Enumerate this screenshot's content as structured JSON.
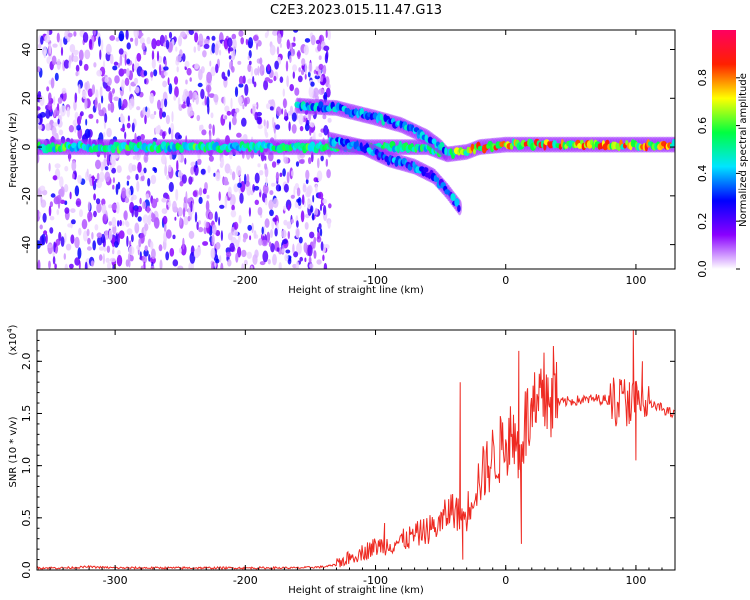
{
  "title": "C2E3.2023.015.11.47.G13",
  "chart_data": [
    {
      "type": "heatmap",
      "xlabel": "Height of straight line (km)",
      "ylabel": "Frequency (Hz)",
      "xlim": [
        -360,
        130
      ],
      "ylim": [
        -50,
        48
      ],
      "x_ticks": [
        -300,
        -200,
        -100,
        0,
        100
      ],
      "y_ticks": [
        -40,
        -20,
        0,
        20,
        40
      ],
      "colorbar": {
        "label": "Normalized spectral amplitude",
        "range": [
          0,
          1
        ],
        "ticks": [
          "0.0",
          "0.2",
          "0.4",
          "0.6",
          "0.8"
        ],
        "colors": [
          "#ffffff",
          "#8a00ff",
          "#0000ff",
          "#00e5ff",
          "#00ff40",
          "#ffff00",
          "#ff2000",
          "#ff0060"
        ]
      },
      "noise_region_x": [
        -360,
        -135
      ],
      "traces": [
        {
          "points": [
            [
              -360,
              0
            ],
            [
              -135,
              0
            ],
            [
              -60,
              0
            ],
            [
              -45,
              -3
            ],
            [
              -30,
              -2
            ],
            [
              -20,
              0
            ],
            [
              0,
              1
            ],
            [
              130,
              1
            ]
          ],
          "amplitude": 0.35
        },
        {
          "points": [
            [
              -160,
              17
            ],
            [
              -130,
              16
            ],
            [
              -100,
              12
            ],
            [
              -80,
              9
            ],
            [
              -60,
              4
            ],
            [
              -50,
              0
            ],
            [
              -45,
              -3
            ]
          ],
          "amplitude": 0.25
        },
        {
          "points": [
            [
              -135,
              3
            ],
            [
              -110,
              0
            ],
            [
              -90,
              -5
            ],
            [
              -70,
              -8
            ],
            [
              -55,
              -12
            ],
            [
              -45,
              -18
            ],
            [
              -35,
              -25
            ]
          ],
          "amplitude": 0.2
        }
      ]
    },
    {
      "type": "line",
      "xlabel": "Height of straight line (km)",
      "ylabel": "SNR (10 * v/v)",
      "y_multiplier": "(x10^4)",
      "xlim": [
        -360,
        130
      ],
      "ylim": [
        0,
        2.3
      ],
      "x_ticks": [
        -300,
        -200,
        -100,
        0,
        100
      ],
      "y_ticks": [
        "0.0",
        "0.5",
        "1.0",
        "1.5",
        "2.0"
      ],
      "color": "#ee2a22",
      "series": [
        {
          "x": [
            -360,
            -340,
            -320,
            -300,
            -280,
            -260,
            -240,
            -220,
            -200,
            -180,
            -160,
            -140,
            -130,
            -120,
            -110,
            -100,
            -90,
            -80,
            -70,
            -60,
            -50,
            -45,
            -40,
            -35,
            -30,
            -25,
            -20,
            -15,
            -10,
            -5,
            0,
            5,
            10,
            15,
            20,
            25,
            30,
            40,
            50,
            60,
            70,
            80,
            90,
            100,
            110,
            120,
            130
          ],
          "y": [
            0.02,
            0.02,
            0.03,
            0.02,
            0.02,
            0.02,
            0.02,
            0.02,
            0.02,
            0.02,
            0.02,
            0.03,
            0.05,
            0.1,
            0.15,
            0.2,
            0.22,
            0.25,
            0.3,
            0.35,
            0.4,
            0.5,
            0.55,
            0.45,
            0.5,
            0.7,
            0.8,
            0.9,
            1.0,
            1.05,
            1.15,
            1.2,
            1.05,
            1.3,
            1.35,
            1.4,
            1.55,
            1.6,
            1.62,
            1.63,
            1.64,
            1.63,
            1.62,
            1.6,
            1.58,
            1.55,
            1.48
          ]
        }
      ],
      "spikes": [
        [
          -93,
          0.45
        ],
        [
          -35,
          1.8
        ],
        [
          -33,
          0.1
        ],
        [
          10,
          2.1
        ],
        [
          12,
          0.25
        ],
        [
          95,
          1.8
        ],
        [
          98,
          2.3
        ],
        [
          100,
          1.05
        ],
        [
          105,
          2.0
        ]
      ]
    }
  ]
}
